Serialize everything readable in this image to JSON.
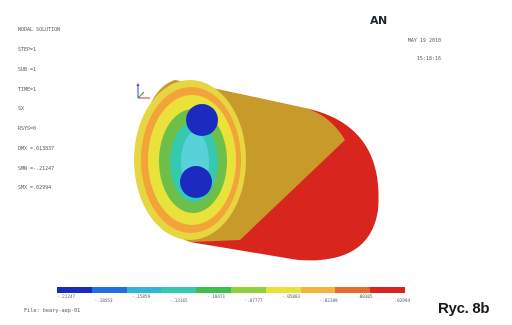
{
  "header": {
    "title": "NODAL SOLUTION",
    "lines": [
      "STEP=1",
      "SUB =1",
      "TIME=1",
      "SX",
      "RSYS=0",
      "DMX =.013837",
      "SMN =-.21247",
      "SMX =.02994"
    ]
  },
  "logo": {
    "text": "AN"
  },
  "stamp": {
    "date": "MAY 19 2010",
    "time": "15:18:16"
  },
  "legend": {
    "colors": [
      "#1c2bbf",
      "#1f6fe0",
      "#2fb6d8",
      "#35c9b0",
      "#3dbf4e",
      "#8fd13a",
      "#e8e23a",
      "#f2b53a",
      "#e86a2c",
      "#d8261e"
    ],
    "tick_labels": [
      "-.21247",
      "-.18553",
      "-.15859",
      "-.13165",
      "-.10471",
      "-.07777",
      "-.05083",
      "-.02389",
      ".00305",
      ".02994"
    ]
  },
  "footer": {
    "file": "File: beary-aep-01"
  },
  "caption": "Ryc. 8b",
  "model": {
    "colors": {
      "outer_body": "#d8261e",
      "shell": "#c89a2a",
      "ring_outer": "#e8d640",
      "ring_orange": "#f2a33a",
      "ring_yellow": "#e8e23a",
      "ring_green": "#6cc04a",
      "ring_teal": "#35c9b0",
      "ring_cyan": "#57d2d8",
      "core": "#1c2bbf"
    }
  }
}
